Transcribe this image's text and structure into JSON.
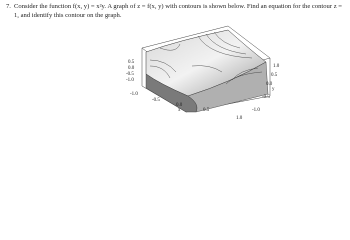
{
  "problem": {
    "number": "7.",
    "text": "Consider the function f(x, y) = x²y. A graph of z = f(x, y) with contours is shown below. Find an equation for the contour z = 1, and identify this contour on the graph."
  },
  "figure": {
    "z_ticks": [
      "0.5",
      "0.0",
      "-0.5",
      "-1.0"
    ],
    "x_ticks": [
      "-1.0",
      "-0.5",
      "0.0",
      "0.5",
      "1.0"
    ],
    "x_label": "x",
    "y_ticks": [
      "1.0",
      "0.5",
      "0.0",
      "-0.5",
      "-1.0"
    ],
    "y_label": "y"
  }
}
